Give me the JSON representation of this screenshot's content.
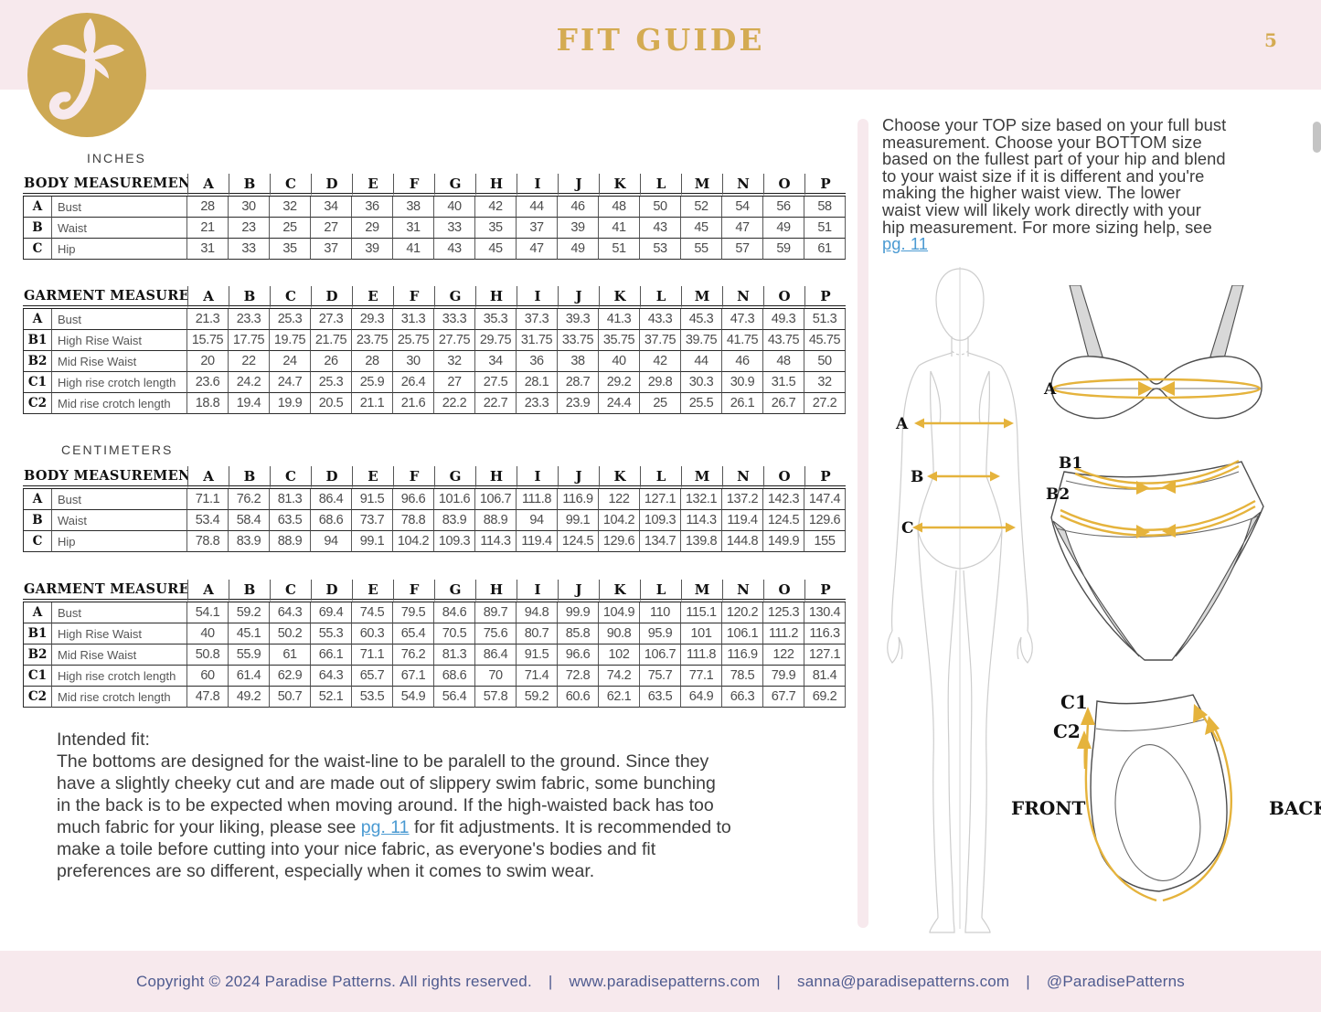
{
  "header": {
    "title": "FIT GUIDE",
    "page_number": "5"
  },
  "section_labels": {
    "inches": "INCHES",
    "centimeters": "CENTIMETERS"
  },
  "size_letters": [
    "A",
    "B",
    "C",
    "D",
    "E",
    "F",
    "G",
    "H",
    "I",
    "J",
    "K",
    "L",
    "M",
    "N",
    "O",
    "P"
  ],
  "tables": {
    "body_inches": {
      "title": "BODY MEASUREMENTS",
      "rows": [
        {
          "code": "A",
          "label": "Bust",
          "values": [
            "28",
            "30",
            "32",
            "34",
            "36",
            "38",
            "40",
            "42",
            "44",
            "46",
            "48",
            "50",
            "52",
            "54",
            "56",
            "58"
          ]
        },
        {
          "code": "B",
          "label": "Waist",
          "values": [
            "21",
            "23",
            "25",
            "27",
            "29",
            "31",
            "33",
            "35",
            "37",
            "39",
            "41",
            "43",
            "45",
            "47",
            "49",
            "51"
          ]
        },
        {
          "code": "C",
          "label": "Hip",
          "values": [
            "31",
            "33",
            "35",
            "37",
            "39",
            "41",
            "43",
            "45",
            "47",
            "49",
            "51",
            "53",
            "55",
            "57",
            "59",
            "61"
          ]
        }
      ]
    },
    "garment_inches": {
      "title": "GARMENT MEASUREMENTS",
      "rows": [
        {
          "code": "A",
          "label": "Bust",
          "values": [
            "21.3",
            "23.3",
            "25.3",
            "27.3",
            "29.3",
            "31.3",
            "33.3",
            "35.3",
            "37.3",
            "39.3",
            "41.3",
            "43.3",
            "45.3",
            "47.3",
            "49.3",
            "51.3"
          ]
        },
        {
          "code": "B1",
          "label": "High Rise Waist",
          "values": [
            "15.75",
            "17.75",
            "19.75",
            "21.75",
            "23.75",
            "25.75",
            "27.75",
            "29.75",
            "31.75",
            "33.75",
            "35.75",
            "37.75",
            "39.75",
            "41.75",
            "43.75",
            "45.75"
          ]
        },
        {
          "code": "B2",
          "label": "Mid Rise Waist",
          "values": [
            "20",
            "22",
            "24",
            "26",
            "28",
            "30",
            "32",
            "34",
            "36",
            "38",
            "40",
            "42",
            "44",
            "46",
            "48",
            "50"
          ]
        },
        {
          "code": "C1",
          "label": "High rise crotch length",
          "values": [
            "23.6",
            "24.2",
            "24.7",
            "25.3",
            "25.9",
            "26.4",
            "27",
            "27.5",
            "28.1",
            "28.7",
            "29.2",
            "29.8",
            "30.3",
            "30.9",
            "31.5",
            "32"
          ]
        },
        {
          "code": "C2",
          "label": "Mid rise crotch length",
          "values": [
            "18.8",
            "19.4",
            "19.9",
            "20.5",
            "21.1",
            "21.6",
            "22.2",
            "22.7",
            "23.3",
            "23.9",
            "24.4",
            "25",
            "25.5",
            "26.1",
            "26.7",
            "27.2"
          ]
        }
      ]
    },
    "body_cm": {
      "title": "BODY MEASUREMENTS",
      "rows": [
        {
          "code": "A",
          "label": "Bust",
          "values": [
            "71.1",
            "76.2",
            "81.3",
            "86.4",
            "91.5",
            "96.6",
            "101.6",
            "106.7",
            "111.8",
            "116.9",
            "122",
            "127.1",
            "132.1",
            "137.2",
            "142.3",
            "147.4"
          ]
        },
        {
          "code": "B",
          "label": "Waist",
          "values": [
            "53.4",
            "58.4",
            "63.5",
            "68.6",
            "73.7",
            "78.8",
            "83.9",
            "88.9",
            "94",
            "99.1",
            "104.2",
            "109.3",
            "114.3",
            "119.4",
            "124.5",
            "129.6"
          ]
        },
        {
          "code": "C",
          "label": "Hip",
          "values": [
            "78.8",
            "83.9",
            "88.9",
            "94",
            "99.1",
            "104.2",
            "109.3",
            "114.3",
            "119.4",
            "124.5",
            "129.6",
            "134.7",
            "139.8",
            "144.8",
            "149.9",
            "155"
          ]
        }
      ]
    },
    "garment_cm": {
      "title": "GARMENT MEASUREMENTS",
      "rows": [
        {
          "code": "A",
          "label": "Bust",
          "values": [
            "54.1",
            "59.2",
            "64.3",
            "69.4",
            "74.5",
            "79.5",
            "84.6",
            "89.7",
            "94.8",
            "99.9",
            "104.9",
            "110",
            "115.1",
            "120.2",
            "125.3",
            "130.4"
          ]
        },
        {
          "code": "B1",
          "label": "High Rise Waist",
          "values": [
            "40",
            "45.1",
            "50.2",
            "55.3",
            "60.3",
            "65.4",
            "70.5",
            "75.6",
            "80.7",
            "85.8",
            "90.8",
            "95.9",
            "101",
            "106.1",
            "111.2",
            "116.3"
          ]
        },
        {
          "code": "B2",
          "label": "Mid Rise Waist",
          "values": [
            "50.8",
            "55.9",
            "61",
            "66.1",
            "71.1",
            "76.2",
            "81.3",
            "86.4",
            "91.5",
            "96.6",
            "102",
            "106.7",
            "111.8",
            "116.9",
            "122",
            "127.1"
          ]
        },
        {
          "code": "C1",
          "label": "High rise crotch length",
          "values": [
            "60",
            "61.4",
            "62.9",
            "64.3",
            "65.7",
            "67.1",
            "68.6",
            "70",
            "71.4",
            "72.8",
            "74.2",
            "75.7",
            "77.1",
            "78.5",
            "79.9",
            "81.4"
          ]
        },
        {
          "code": "C2",
          "label": "Mid rise crotch length",
          "values": [
            "47.8",
            "49.2",
            "50.7",
            "52.1",
            "53.5",
            "54.9",
            "56.4",
            "57.8",
            "59.2",
            "60.6",
            "62.1",
            "63.5",
            "64.9",
            "66.3",
            "67.7",
            "69.2"
          ]
        }
      ]
    }
  },
  "sizing_note": {
    "text": "Choose your TOP size based on your full bust\nmeasurement. Choose your BOTTOM size\nbased on the fullest part of your hip and blend\nto your waist size if it is different and you're\nmaking the higher waist view. The lower\nwaist view will likely work directly with your\nhip measurement. For more sizing help, see",
    "link": "pg. 11"
  },
  "intended_fit": {
    "heading": "Intended fit:",
    "text_before_link": "The bottoms are designed for the waist-line to be paralell to the ground. Since they\nhave a slightly cheeky cut and are made out of slippery swim fabric, some bunching\nin the back is to be expected when moving around. If the high-waisted back has too\nmuch fabric for your liking, please see ",
    "link": "pg. 11",
    "text_after_link": " for fit adjustments. It is recommended to\nmake a toile before cutting into your nice fabric, as everyone's bodies and fit\npreferences are so different, especially when it comes to swim wear."
  },
  "diagrams": {
    "body_figure": {
      "label_a": "A",
      "label_b": "B",
      "label_c": "C"
    },
    "bikini_top": {
      "label_a": "A"
    },
    "bikini_bottom": {
      "label_b1": "B1",
      "label_b2": "B2"
    },
    "crotch_view": {
      "label_c1": "C1",
      "label_c2": "C2",
      "front": "FRONT",
      "back": "BACK"
    }
  },
  "footer": {
    "copyright": "Copyright © 2024 Paradise Patterns. All rights reserved.",
    "separator": "|",
    "website": "www.paradisepatterns.com",
    "email": "sanna@paradisepatterns.com",
    "social": "@ParadisePatterns"
  },
  "colors": {
    "pink": "#f7e9ed",
    "gold": "#d4ab52",
    "arrow_gold": "#e5b33c",
    "link_blue": "#4a9ad2",
    "footer_text": "#4f5b8f"
  }
}
